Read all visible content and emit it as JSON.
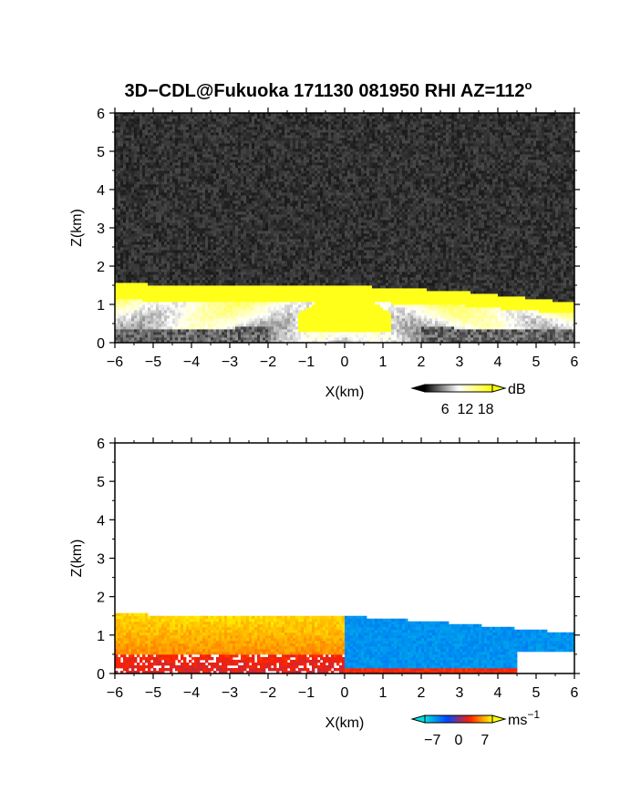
{
  "figure": {
    "title": "3D−CDL@Fukuoka 171130 081950 RHI AZ=112",
    "title_superscript": "o"
  },
  "chart_data": [
    {
      "type": "heatmap",
      "panel": "top",
      "quantity": "backscatter intensity",
      "xlabel": "X(km)",
      "ylabel": "Z(km)",
      "xlim": [
        -6,
        6
      ],
      "ylim": [
        0,
        6
      ],
      "x_ticks": [
        "−6",
        "−5",
        "−4",
        "−3",
        "−2",
        "−1",
        "0",
        "1",
        "2",
        "3",
        "4",
        "5",
        "6"
      ],
      "y_ticks": [
        "0",
        "1",
        "2",
        "3",
        "4",
        "5",
        "6"
      ],
      "signal_top_km": {
        "x": [
          -6,
          -3,
          0,
          3,
          6
        ],
        "z": [
          1.55,
          1.5,
          1.5,
          1.35,
          1.05
        ]
      },
      "colorbar": {
        "unit": "dB",
        "ticks": [
          "6",
          "12",
          "18"
        ],
        "tick_values": [
          6,
          12,
          18
        ],
        "range": [
          0,
          20
        ],
        "colors": [
          "#000000",
          "#ffffff",
          "#ffff00"
        ]
      }
    },
    {
      "type": "heatmap",
      "panel": "bottom",
      "quantity": "Doppler velocity",
      "xlabel": "X(km)",
      "ylabel": "Z(km)",
      "xlim": [
        -6,
        6
      ],
      "ylim": [
        0,
        6
      ],
      "x_ticks": [
        "−6",
        "−5",
        "−4",
        "−3",
        "−2",
        "−1",
        "0",
        "1",
        "2",
        "3",
        "4",
        "5",
        "6"
      ],
      "y_ticks": [
        "0",
        "1",
        "2",
        "3",
        "4",
        "5",
        "6"
      ],
      "signal_top_km": {
        "x": [
          -6,
          -3,
          0,
          3,
          6
        ],
        "z": [
          1.55,
          1.5,
          1.5,
          1.3,
          1.05
        ]
      },
      "region_velocity_ms": {
        "x_lt_0": 5,
        "x_gt_0": -6
      },
      "colorbar": {
        "unit": "ms",
        "unit_superscript": "−1",
        "ticks": [
          "−7",
          "0",
          "7"
        ],
        "tick_values": [
          -7,
          0,
          7
        ],
        "range": [
          -9,
          9
        ],
        "colors": [
          "#00e0e0",
          "#0044ff",
          "#ff2000",
          "#ffff00"
        ]
      }
    }
  ]
}
